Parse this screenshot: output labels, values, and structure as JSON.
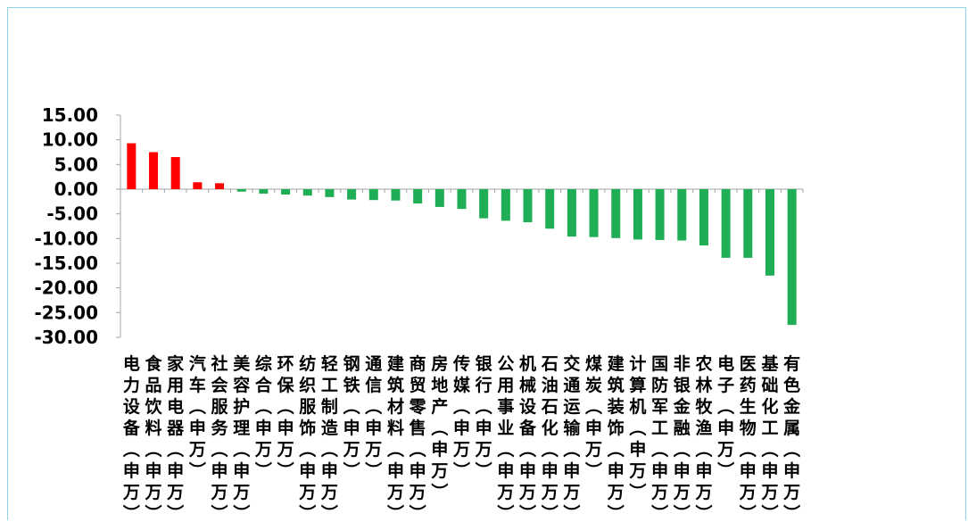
{
  "chart_data": {
    "type": "bar",
    "title": "",
    "xlabel": "",
    "ylabel": "",
    "ylim": [
      -30,
      15
    ],
    "y_ticks": [
      "15.00",
      "10.00",
      "5.00",
      "0.00",
      "-5.00",
      "-10.00",
      "-15.00",
      "-20.00",
      "-25.00",
      "-30.00"
    ],
    "grid": false,
    "colors": {
      "positive": "#ff0000",
      "negative": "#1fae55",
      "axis": "#a6a6a6"
    },
    "categories": [
      "电力设备(申万)",
      "食品饮料(申万)",
      "家用电器(申万)",
      "汽车(申万)",
      "社会服务(申万)",
      "美容护理(申万)",
      "综合(申万)",
      "环保(申万)",
      "纺织服饰(申万)",
      "轻工制造(申万)",
      "钢铁(申万)",
      "通信(申万)",
      "建筑材料(申万)",
      "商贸零售(申万)",
      "房地产(申万)",
      "传媒(申万)",
      "银行(申万)",
      "公用事业(申万)",
      "机械设备(申万)",
      "石油石化(申万)",
      "交通运输(申万)",
      "煤炭(申万)",
      "建筑装饰(申万)",
      "计算机(申万)",
      "国防军工(申万)",
      "非银金融(申万)",
      "农林牧渔(申万)",
      "电子(申万)",
      "医药生物(申万)",
      "基础化工(申万)",
      "有色金属(申万)"
    ],
    "values": [
      9.3,
      7.5,
      6.5,
      1.4,
      1.2,
      -0.5,
      -0.9,
      -1.1,
      -1.3,
      -1.6,
      -2.1,
      -2.2,
      -2.3,
      -2.9,
      -3.6,
      -4.0,
      -5.9,
      -6.4,
      -6.7,
      -8.0,
      -9.6,
      -9.7,
      -9.9,
      -10.2,
      -10.3,
      -10.4,
      -11.4,
      -13.9,
      -13.9,
      -17.5,
      -27.5
    ]
  }
}
